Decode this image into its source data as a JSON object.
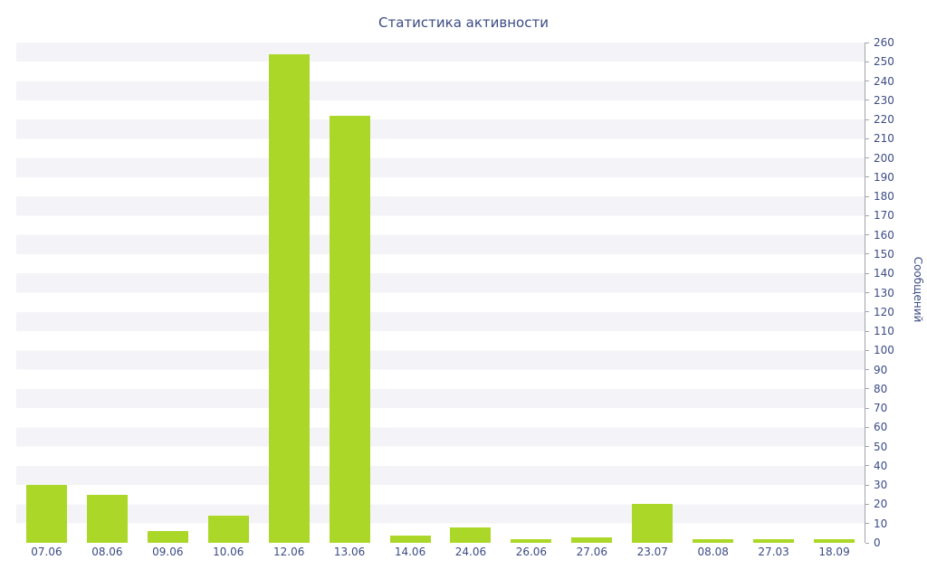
{
  "colors": {
    "bar": "#abd828",
    "text": "#3c4b85",
    "stripe": "#f4f4f8",
    "axis": "#a3a3ad"
  },
  "chart_data": {
    "type": "bar",
    "title": "Статистика активности",
    "categories": [
      "07.06",
      "08.06",
      "09.06",
      "10.06",
      "12.06",
      "13.06",
      "14.06",
      "24.06",
      "26.06",
      "27.06",
      "23.07",
      "08.08",
      "27.03",
      "18.09"
    ],
    "values": [
      30,
      25,
      6,
      14,
      254,
      222,
      4,
      8,
      2,
      3,
      20,
      2,
      2,
      2
    ],
    "xlabel": "",
    "ylabel": "Сообщений",
    "ylim": [
      0,
      260
    ],
    "ytick_step": 10,
    "legend": false,
    "grid": "striped-horizontal-bands",
    "y_axis_position": "right",
    "bar_color": "#abd828"
  }
}
